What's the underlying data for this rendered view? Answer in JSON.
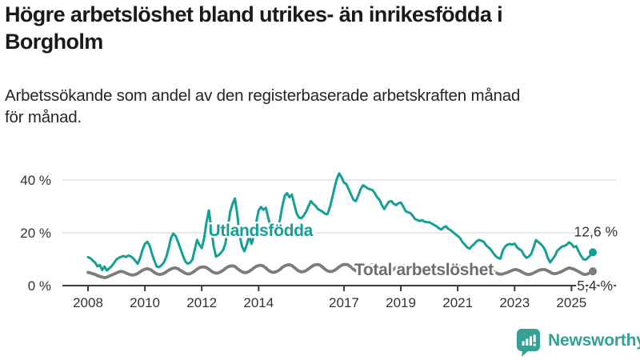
{
  "title": "Högre arbetslöshet bland utrikes- än inrikesfödda i\nBorgholm",
  "subtitle": "Arbetssökande som andel av den registerbaserade arbetskraften månad\nför månad.",
  "footer": {
    "brand": "Newsworthy"
  },
  "colors": {
    "accent_teal": "#16a095",
    "line_gray": "#7c7c7c",
    "label_gray": "#6e6e6e",
    "axis": "#3c3c3c",
    "text": "#333333",
    "grid": "#dadada",
    "title_text": "#1a1a1a",
    "brand_teal": "#35a094"
  },
  "chart_data": {
    "type": "line",
    "x_start_year": 2008,
    "points_per_year": 12,
    "x_ticks": [
      2008,
      2010,
      2012,
      2014,
      2017,
      2019,
      2021,
      2023,
      2025
    ],
    "y_ticks": [
      {
        "value": 0,
        "label": "0 %"
      },
      {
        "value": 20,
        "label": "20 %"
      },
      {
        "value": 40,
        "label": "40 %"
      }
    ],
    "ylim": [
      0,
      44
    ],
    "grid": "horizontal",
    "legend_position": "on-line-labels",
    "series": [
      {
        "name": "Utlandsfödda",
        "color": "#16a095",
        "end_label": "12,6 %",
        "end_value": 12.6,
        "label_pos": {
          "year": 2014.07,
          "value": 18.8
        },
        "values": [
          10.8,
          10.4,
          9.5,
          8.7,
          7.3,
          7.8,
          5.9,
          7.2,
          5.7,
          6.6,
          7.4,
          8.6,
          9.9,
          10.5,
          10.9,
          11.2,
          10.8,
          11.4,
          11.1,
          10.4,
          9.3,
          8.3,
          10.5,
          13.5,
          15.8,
          16.6,
          15.2,
          12.0,
          9.5,
          7.2,
          7.0,
          7.7,
          8.8,
          10.8,
          14.0,
          18.0,
          19.7,
          18.8,
          16.5,
          14.0,
          11.5,
          9.2,
          8.3,
          8.6,
          9.8,
          13.5,
          17.3,
          15.5,
          14.2,
          18.0,
          24.0,
          28.5,
          22.0,
          15.0,
          11.0,
          11.5,
          12.3,
          13.5,
          16.0,
          22.0,
          28.0,
          31.0,
          33.0,
          27.0,
          19.0,
          14.8,
          13.0,
          15.5,
          18.8,
          15.8,
          19.0,
          24.0,
          28.5,
          29.8,
          28.7,
          29.5,
          26.0,
          22.4,
          20.0,
          19.7,
          21.5,
          25.0,
          30.0,
          34.0,
          35.0,
          33.5,
          34.5,
          31.0,
          27.5,
          25.8,
          25.5,
          26.5,
          28.0,
          30.0,
          32.0,
          31.0,
          30.2,
          29.0,
          28.5,
          28.0,
          27.2,
          27.0,
          29.5,
          33.0,
          37.0,
          40.5,
          42.5,
          41.0,
          39.0,
          38.5,
          36.5,
          34.5,
          32.5,
          32.0,
          34.0,
          36.5,
          38.0,
          37.5,
          36.8,
          36.5,
          36.2,
          35.0,
          33.5,
          32.5,
          30.5,
          29.0,
          30.5,
          31.8,
          32.0,
          31.0,
          30.5,
          31.2,
          31.5,
          30.0,
          28.2,
          27.8,
          27.5,
          26.5,
          25.2,
          24.8,
          24.5,
          24.8,
          24.2,
          24.0,
          24.0,
          23.5,
          23.0,
          22.5,
          21.8,
          21.2,
          22.0,
          22.5,
          21.5,
          21.0,
          20.2,
          19.5,
          18.8,
          18.0,
          16.5,
          15.5,
          14.5,
          14.0,
          15.0,
          15.8,
          16.8,
          17.3,
          17.0,
          16.6,
          15.2,
          14.5,
          13.6,
          12.3,
          11.2,
          10.5,
          10.2,
          13.2,
          14.8,
          15.5,
          15.8,
          15.5,
          15.9,
          14.5,
          13.8,
          13.2,
          11.5,
          10.5,
          11.0,
          12.0,
          14.5,
          17.2,
          16.5,
          15.8,
          14.8,
          13.2,
          10.5,
          8.8,
          10.0,
          11.2,
          13.2,
          14.0,
          14.8,
          15.0,
          15.5,
          16.4,
          15.8,
          14.6,
          14.9,
          13.0,
          11.3,
          10.0,
          9.8,
          10.6,
          11.5,
          12.6
        ]
      },
      {
        "name": "Total arbetslöshet",
        "color": "#7c7c7c",
        "end_label": "5,4 %",
        "end_value": 5.4,
        "label_pos": {
          "year": 2019.81,
          "value": 3.9
        },
        "values": [
          5.0,
          4.8,
          4.5,
          4.2,
          3.8,
          3.5,
          3.2,
          3.0,
          3.2,
          3.6,
          4.0,
          4.4,
          4.8,
          5.2,
          5.4,
          5.2,
          4.8,
          4.4,
          4.1,
          4.0,
          4.2,
          4.6,
          5.2,
          5.8,
          6.2,
          6.4,
          6.2,
          5.7,
          5.0,
          4.5,
          4.2,
          4.3,
          4.6,
          5.2,
          5.8,
          6.3,
          6.6,
          6.7,
          6.4,
          5.8,
          5.2,
          4.7,
          4.4,
          4.5,
          4.9,
          5.5,
          6.2,
          6.8,
          7.0,
          7.1,
          6.8,
          6.2,
          5.5,
          5.0,
          4.7,
          4.8,
          5.2,
          5.8,
          6.5,
          7.1,
          7.4,
          7.5,
          7.2,
          6.5,
          5.8,
          5.2,
          4.9,
          5.0,
          5.4,
          6.0,
          6.7,
          7.3,
          7.6,
          7.7,
          7.4,
          6.7,
          5.9,
          5.3,
          5.0,
          5.1,
          5.5,
          6.1,
          6.9,
          7.5,
          7.8,
          7.9,
          7.6,
          6.9,
          6.1,
          5.5,
          5.2,
          5.3,
          5.7,
          6.3,
          7.0,
          7.6,
          7.9,
          8.0,
          7.7,
          7.0,
          6.2,
          5.6,
          5.3,
          5.4,
          5.8,
          6.4,
          7.1,
          7.7,
          8.0,
          8.0,
          7.7,
          7.0,
          6.2,
          5.6,
          5.3,
          5.4,
          5.8,
          6.4,
          7.0,
          7.6,
          7.8,
          7.8,
          7.5,
          6.8,
          6.0,
          5.4,
          5.1,
          5.2,
          5.6,
          6.2,
          6.8,
          7.4,
          7.6,
          7.6,
          7.3,
          6.6,
          5.9,
          5.3,
          5.0,
          5.1,
          5.5,
          6.0,
          6.6,
          7.2,
          7.4,
          7.5,
          7.6,
          7.2,
          6.8,
          6.4,
          6.2,
          6.1,
          6.2,
          6.4,
          6.8,
          7.2,
          7.4,
          7.3,
          7.0,
          6.5,
          5.9,
          5.4,
          5.1,
          5.0,
          5.2,
          5.5,
          5.9,
          6.2,
          6.3,
          6.2,
          5.9,
          5.4,
          4.9,
          4.5,
          4.3,
          4.4,
          4.7,
          5.0,
          5.4,
          5.8,
          6.1,
          6.0,
          5.7,
          5.2,
          4.7,
          4.3,
          4.2,
          4.4,
          4.8,
          5.2,
          5.7,
          6.0,
          6.1,
          6.0,
          5.6,
          5.1,
          4.6,
          4.5,
          4.7,
          5.0,
          5.4,
          5.9,
          6.4,
          6.7,
          6.5,
          6.2,
          5.8,
          5.3,
          4.8,
          4.3,
          4.2,
          4.5,
          5.0,
          5.4
        ]
      }
    ]
  }
}
